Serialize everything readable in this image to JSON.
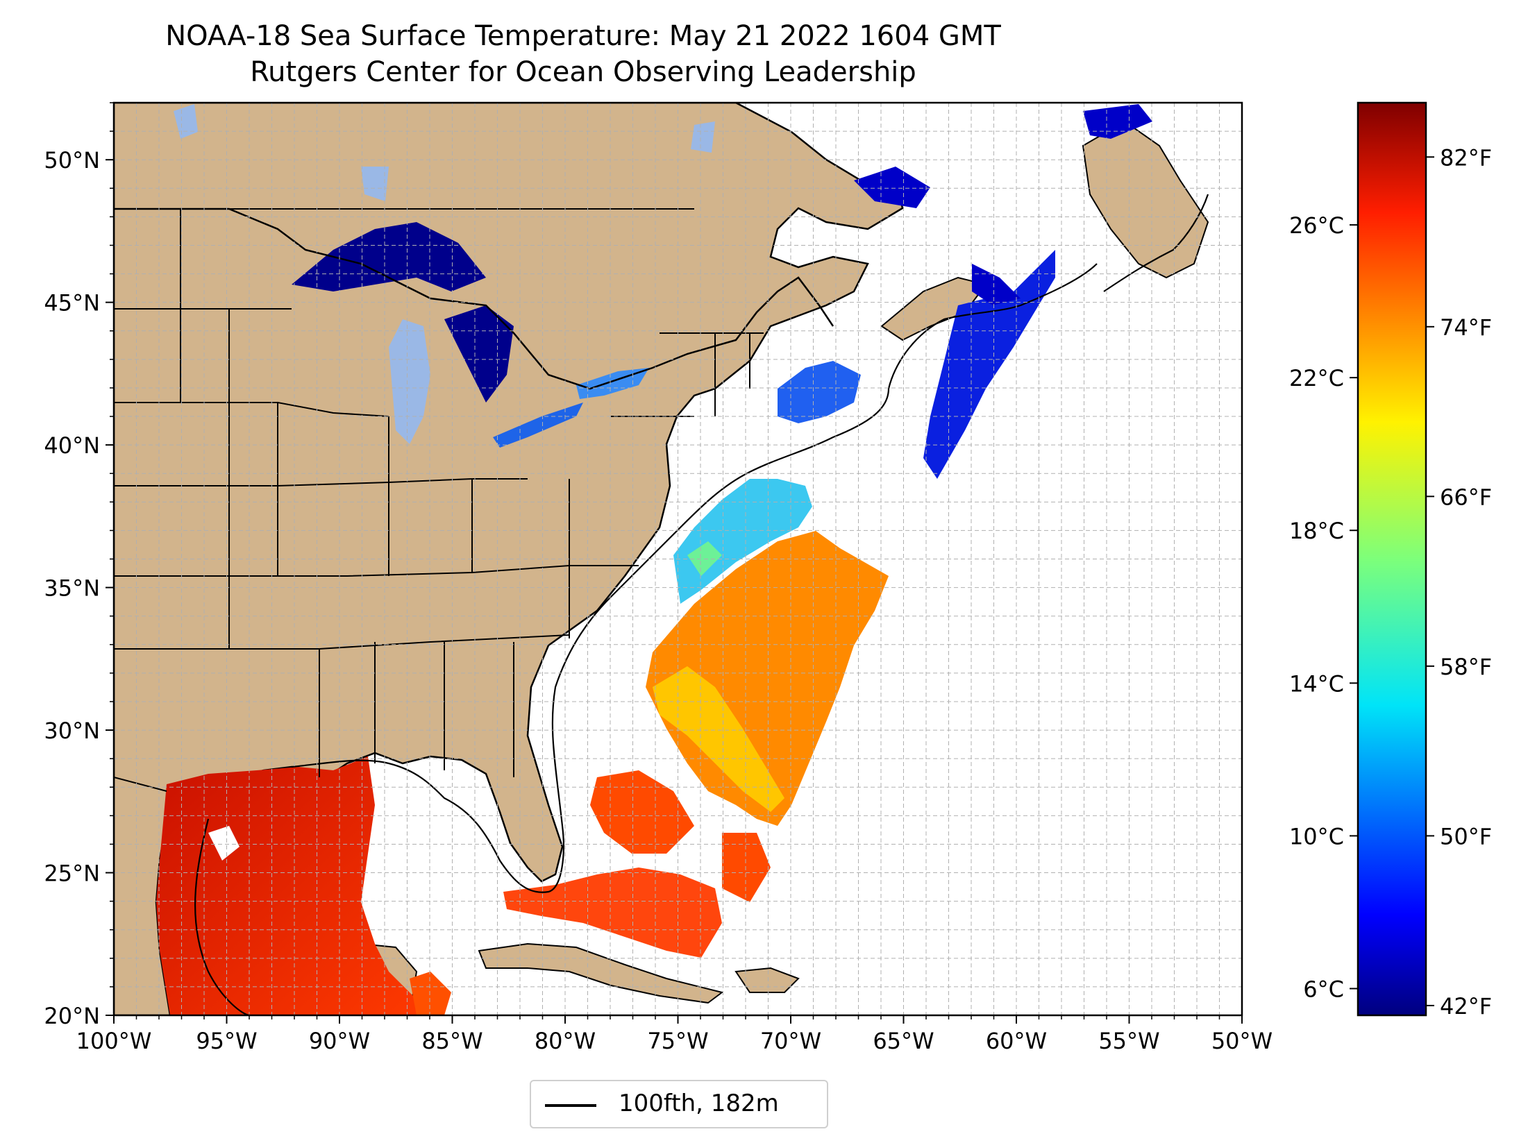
{
  "title": {
    "line1": "NOAA-18 Sea Surface Temperature: May 21 2022 1604 GMT",
    "line2": "Rutgers Center for Ocean Observing Leadership"
  },
  "colors": {
    "land": "#d2b48c",
    "lake": "#9ab8e6",
    "no_data": "#ffffff",
    "grid": "#b0b0b0"
  },
  "map": {
    "lon_range": [
      -100,
      -50
    ],
    "lat_range": [
      20,
      52
    ],
    "lon_ticks": [
      "100°W",
      "95°W",
      "90°W",
      "85°W",
      "80°W",
      "75°W",
      "70°W",
      "65°W",
      "60°W",
      "55°W",
      "50°W"
    ],
    "lat_ticks": [
      "20°N",
      "25°N",
      "30°N",
      "35°N",
      "40°N",
      "45°N",
      "50°N"
    ],
    "grid": true
  },
  "colorbar": {
    "colormap": "jet",
    "celsius_ticks": [
      "6°C",
      "10°C",
      "14°C",
      "18°C",
      "22°C",
      "26°C"
    ],
    "fahrenheit_ticks": [
      "42°F",
      "50°F",
      "58°F",
      "66°F",
      "74°F",
      "82°F"
    ]
  },
  "legend": {
    "label": "100fth, 182m",
    "position": "bottom-center"
  }
}
